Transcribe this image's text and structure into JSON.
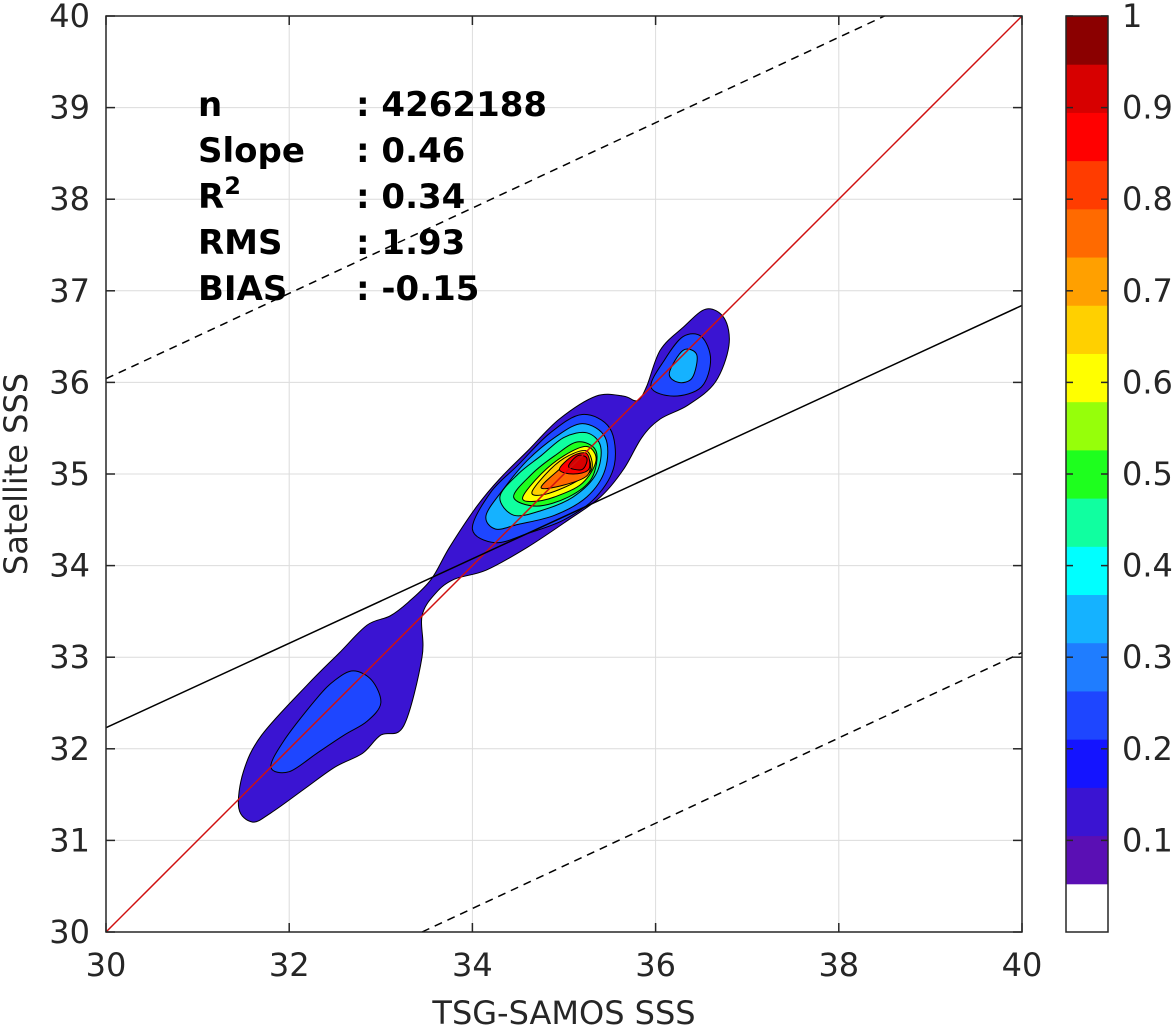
{
  "chart_data": {
    "type": "heatmap",
    "subtype": "filled-contour density scatter",
    "xlabel": "TSG-SAMOS SSS",
    "ylabel": "Satellite SSS",
    "xlim": [
      30,
      40
    ],
    "ylim": [
      30,
      40
    ],
    "x_ticks": [
      "30",
      "32",
      "34",
      "36",
      "38",
      "40"
    ],
    "y_ticks": [
      "30",
      "31",
      "32",
      "33",
      "34",
      "35",
      "36",
      "37",
      "38",
      "39",
      "40"
    ],
    "grid": true,
    "stats": [
      {
        "label": "n",
        "value": ": 4262188"
      },
      {
        "label": "Slope",
        "value": ": 0.46"
      },
      {
        "label": "R",
        "sup": "2",
        "value": ": 0.34"
      },
      {
        "label": "RMS",
        "value": ": 1.93"
      },
      {
        "label": "BIAS",
        "value": ": -0.15"
      }
    ],
    "lines": [
      {
        "name": "one-to-one",
        "style": "solid",
        "color": "#d01010",
        "x": [
          30,
          40
        ],
        "y": [
          30,
          40
        ]
      },
      {
        "name": "regression",
        "style": "solid",
        "color": "#000000",
        "x": [
          30,
          40
        ],
        "y": [
          32.23,
          36.84
        ]
      },
      {
        "name": "upper-bound",
        "style": "dashed",
        "color": "#000000",
        "x": [
          30,
          38.5
        ],
        "y": [
          36.04,
          40
        ]
      },
      {
        "name": "lower-bound",
        "style": "dashed",
        "color": "#000000",
        "x": [
          33.45,
          40
        ],
        "y": [
          30,
          33.05
        ]
      }
    ],
    "colorbar": {
      "ticks": [
        "0.1",
        "0.2",
        "0.3",
        "0.4",
        "0.5",
        "0.6",
        "0.7",
        "0.8",
        "0.9",
        "1"
      ],
      "min": 0,
      "max": 1,
      "colors": [
        "#ffffff",
        "#5a0fb4",
        "#3a14d2",
        "#1414ff",
        "#1e46ff",
        "#1f7dff",
        "#15b2ff",
        "#00ffff",
        "#10ffa0",
        "#1eff1e",
        "#96ff0a",
        "#ffff00",
        "#ffd000",
        "#ffa000",
        "#ff6a00",
        "#ff3c00",
        "#ff0000",
        "#d70000",
        "#8b0000"
      ]
    },
    "contours": [
      {
        "level": 0.1,
        "color": "#3a14d2",
        "polygons": [
          [
            [
              31.5,
              31.75
            ],
            [
              31.7,
              32.15
            ],
            [
              32.2,
              32.7
            ],
            [
              32.55,
              33.05
            ],
            [
              32.85,
              33.35
            ],
            [
              33.1,
              33.45
            ],
            [
              33.3,
              33.6
            ],
            [
              33.55,
              33.85
            ],
            [
              33.75,
              34.2
            ],
            [
              34.05,
              34.65
            ],
            [
              34.3,
              34.95
            ],
            [
              34.6,
              35.25
            ],
            [
              34.95,
              35.6
            ],
            [
              35.35,
              35.85
            ],
            [
              35.65,
              35.85
            ],
            [
              35.8,
              35.8
            ],
            [
              35.9,
              35.95
            ],
            [
              36.05,
              36.35
            ],
            [
              36.3,
              36.6
            ],
            [
              36.55,
              36.8
            ],
            [
              36.75,
              36.7
            ],
            [
              36.8,
              36.4
            ],
            [
              36.65,
              36.0
            ],
            [
              36.35,
              35.75
            ],
            [
              36.05,
              35.6
            ],
            [
              35.85,
              35.4
            ],
            [
              35.65,
              35.05
            ],
            [
              35.4,
              34.75
            ],
            [
              35.05,
              34.5
            ],
            [
              34.6,
              34.2
            ],
            [
              34.15,
              33.95
            ],
            [
              33.8,
              33.85
            ],
            [
              33.6,
              33.7
            ],
            [
              33.45,
              33.45
            ],
            [
              33.45,
              33.0
            ],
            [
              33.25,
              32.25
            ],
            [
              33.0,
              32.15
            ],
            [
              32.8,
              31.95
            ],
            [
              32.5,
              31.8
            ],
            [
              32.15,
              31.55
            ],
            [
              31.8,
              31.3
            ],
            [
              31.6,
              31.2
            ],
            [
              31.45,
              31.35
            ]
          ]
        ]
      },
      {
        "level": 0.2,
        "color": "#1e46ff",
        "polygons": [
          [
            [
              31.8,
              31.8
            ],
            [
              31.95,
              32.1
            ],
            [
              32.3,
              32.55
            ],
            [
              32.5,
              32.75
            ],
            [
              32.7,
              32.85
            ],
            [
              32.9,
              32.75
            ],
            [
              33.0,
              32.5
            ],
            [
              32.85,
              32.3
            ],
            [
              32.6,
              32.15
            ],
            [
              32.3,
              31.95
            ],
            [
              32.0,
              31.75
            ]
          ],
          [
            [
              34.0,
              34.4
            ],
            [
              34.2,
              34.8
            ],
            [
              34.5,
              35.1
            ],
            [
              34.85,
              35.45
            ],
            [
              35.2,
              35.65
            ],
            [
              35.5,
              35.5
            ],
            [
              35.55,
              35.1
            ],
            [
              35.35,
              34.75
            ],
            [
              35.0,
              34.5
            ],
            [
              34.6,
              34.35
            ],
            [
              34.25,
              34.25
            ]
          ],
          [
            [
              35.95,
              35.95
            ],
            [
              36.1,
              36.25
            ],
            [
              36.3,
              36.5
            ],
            [
              36.5,
              36.5
            ],
            [
              36.6,
              36.25
            ],
            [
              36.5,
              35.95
            ],
            [
              36.2,
              35.85
            ]
          ]
        ]
      },
      {
        "level": 0.3,
        "color": "#15b2ff",
        "polygons": [
          [
            [
              34.15,
              34.55
            ],
            [
              34.35,
              34.85
            ],
            [
              34.6,
              35.15
            ],
            [
              34.9,
              35.4
            ],
            [
              35.2,
              35.55
            ],
            [
              35.45,
              35.4
            ],
            [
              35.45,
              35.05
            ],
            [
              35.25,
              34.75
            ],
            [
              34.9,
              34.55
            ],
            [
              34.5,
              34.45
            ],
            [
              34.25,
              34.4
            ]
          ],
          [
            [
              36.15,
              36.1
            ],
            [
              36.3,
              36.35
            ],
            [
              36.45,
              36.3
            ],
            [
              36.4,
              36.05
            ],
            [
              36.25,
              36.0
            ]
          ]
        ]
      },
      {
        "level": 0.4,
        "color": "#10ffa0",
        "polygons": [
          [
            [
              34.3,
              34.75
            ],
            [
              34.5,
              35.0
            ],
            [
              34.75,
              35.2
            ],
            [
              35.0,
              35.4
            ],
            [
              35.25,
              35.45
            ],
            [
              35.4,
              35.3
            ],
            [
              35.35,
              35.0
            ],
            [
              35.1,
              34.75
            ],
            [
              34.75,
              34.6
            ],
            [
              34.45,
              34.55
            ]
          ]
        ]
      },
      {
        "level": 0.5,
        "color": "#1eff1e",
        "polygons": [
          [
            [
              34.45,
              34.75
            ],
            [
              34.65,
              35.0
            ],
            [
              34.9,
              35.2
            ],
            [
              35.15,
              35.35
            ],
            [
              35.35,
              35.25
            ],
            [
              35.3,
              34.95
            ],
            [
              35.05,
              34.75
            ],
            [
              34.7,
              34.65
            ]
          ]
        ]
      },
      {
        "level": 0.6,
        "color": "#ffff00",
        "polygons": [
          [
            [
              34.55,
              34.75
            ],
            [
              34.75,
              35.0
            ],
            [
              35.0,
              35.2
            ],
            [
              35.25,
              35.3
            ],
            [
              35.35,
              35.15
            ],
            [
              35.2,
              34.9
            ],
            [
              34.9,
              34.75
            ],
            [
              34.65,
              34.7
            ]
          ]
        ]
      },
      {
        "level": 0.7,
        "color": "#ffd000",
        "polygons": [
          [
            [
              34.65,
              34.8
            ],
            [
              34.85,
              35.05
            ],
            [
              35.05,
              35.2
            ],
            [
              35.25,
              35.25
            ],
            [
              35.3,
              35.05
            ],
            [
              35.1,
              34.9
            ],
            [
              34.8,
              34.78
            ]
          ]
        ]
      },
      {
        "level": 0.8,
        "color": "#ff6a00",
        "polygons": [
          [
            [
              34.75,
              34.85
            ],
            [
              34.95,
              35.05
            ],
            [
              35.15,
              35.2
            ],
            [
              35.28,
              35.15
            ],
            [
              35.25,
              34.98
            ],
            [
              35.0,
              34.88
            ]
          ]
        ]
      },
      {
        "level": 0.9,
        "color": "#ff0000",
        "polygons": [
          [
            [
              34.95,
              35.05
            ],
            [
              35.1,
              35.2
            ],
            [
              35.25,
              35.22
            ],
            [
              35.27,
              35.05
            ],
            [
              35.1,
              35.0
            ]
          ]
        ]
      },
      {
        "level": 1.0,
        "color": "#d70000",
        "polygons": [
          [
            [
              35.05,
              35.08
            ],
            [
              35.15,
              35.2
            ],
            [
              35.25,
              35.17
            ],
            [
              35.2,
              35.05
            ]
          ]
        ]
      }
    ]
  }
}
